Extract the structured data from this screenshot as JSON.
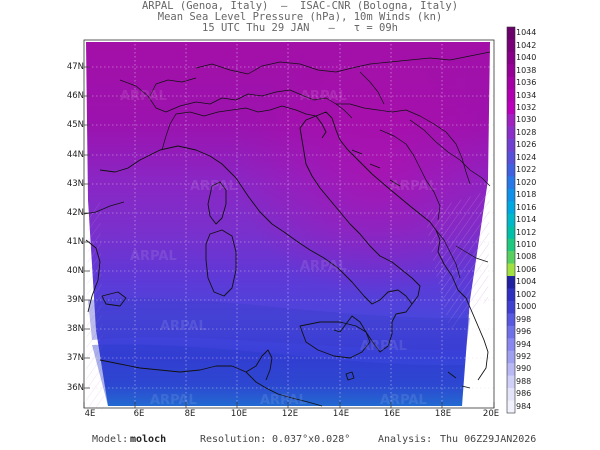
{
  "header": {
    "line1": "ARPAL (Genoa, Italy)  —  ISAC-CNR (Bologna, Italy)",
    "line2": "Mean Sea Level Pressure (hPa), 10m Winds (kn)",
    "line3": "15 UTC Thu 29 JAN   –   τ = 09h"
  },
  "map": {
    "lat_labels": [
      "47N",
      "46N",
      "45N",
      "44N",
      "43N",
      "42N",
      "41N",
      "40N",
      "39N",
      "38N",
      "37N",
      "36N"
    ],
    "lon_labels": [
      "4E",
      "6E",
      "8E",
      "10E",
      "12E",
      "14E",
      "16E",
      "18E",
      "20E"
    ],
    "watermark": "ARPAL"
  },
  "colorbar": {
    "labels": [
      "1044",
      "1042",
      "1040",
      "1038",
      "1036",
      "1034",
      "1032",
      "1030",
      "1028",
      "1026",
      "1024",
      "1022",
      "1020",
      "1018",
      "1016",
      "1014",
      "1012",
      "1010",
      "1008",
      "1006",
      "1004",
      "1002",
      "1000",
      "998",
      "996",
      "994",
      "992",
      "990",
      "988",
      "986",
      "984"
    ],
    "colors": [
      "#6a006a",
      "#7a007a",
      "#880088",
      "#960096",
      "#a400a4",
      "#b000b0",
      "#bb00bb",
      "#a020c0",
      "#8a30c8",
      "#7040d0",
      "#5850d8",
      "#4060e0",
      "#2878e8",
      "#1090e8",
      "#00a8e0",
      "#00b8c8",
      "#00c0a8",
      "#20c880",
      "#58d060",
      "#a0e040",
      "#2020a0",
      "#3030c0",
      "#4040d0",
      "#5858e0",
      "#7070e8",
      "#8888f0",
      "#a0a0f0",
      "#b8b8f4",
      "#d0d0f8",
      "#e4e4fa",
      "#f2f2fc"
    ]
  },
  "footer": {
    "model_label": "Model:",
    "model_value": "moloch",
    "resolution_label": "Resolution:",
    "resolution_value": "0.037°x0.028°",
    "analysis_label": "Analysis:",
    "analysis_value": "Thu 06Z29JAN2026"
  }
}
